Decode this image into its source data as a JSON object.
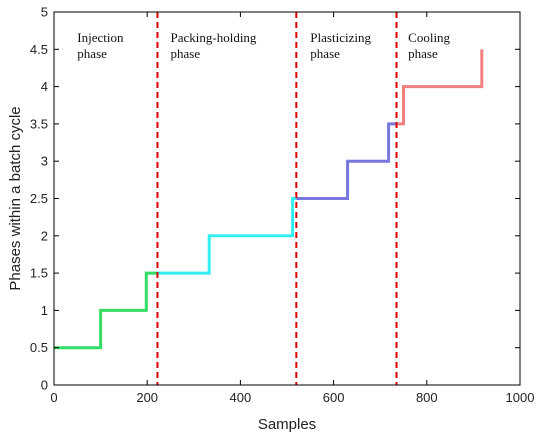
{
  "chart_data": {
    "type": "line",
    "xlabel": "Samples",
    "ylabel": "Phases within a batch cycle",
    "xlim": [
      0,
      1000
    ],
    "ylim": [
      0,
      5
    ],
    "xticks": [
      0,
      200,
      400,
      600,
      800,
      1000
    ],
    "yticks": [
      0,
      0.5,
      1,
      1.5,
      2,
      2.5,
      3,
      3.5,
      4,
      4.5,
      5
    ],
    "grid": false,
    "series": [
      {
        "color": "#33dd66",
        "x": [
          0,
          100,
          100,
          198,
          198,
          222
        ],
        "y": [
          0.5,
          0.5,
          1,
          1,
          1.5,
          1.5
        ]
      },
      {
        "color": "#33eeee",
        "x": [
          222,
          333,
          333,
          512,
          512,
          520
        ],
        "y": [
          1.5,
          1.5,
          2,
          2,
          2.5,
          2.5
        ]
      },
      {
        "color": "#7777dd",
        "x": [
          520,
          630,
          630,
          718,
          718,
          735
        ],
        "y": [
          2.5,
          2.5,
          3,
          3,
          3.5,
          3.5
        ]
      },
      {
        "color": "#f08080",
        "x": [
          735,
          750,
          750,
          918,
          918
        ],
        "y": [
          3.5,
          3.5,
          4,
          4,
          4.5
        ]
      }
    ],
    "phase_boundaries": {
      "x": [
        222,
        520,
        735
      ],
      "color": "#dd0000"
    },
    "phases": [
      {
        "line1": "Injection",
        "line2": "phase",
        "x": 50
      },
      {
        "line1": "Packing-holding",
        "line2": "phase",
        "x": 250
      },
      {
        "line1": "Plasticizing",
        "line2": "phase",
        "x": 550
      },
      {
        "line1": "Cooling",
        "line2": "phase",
        "x": 760
      }
    ]
  }
}
